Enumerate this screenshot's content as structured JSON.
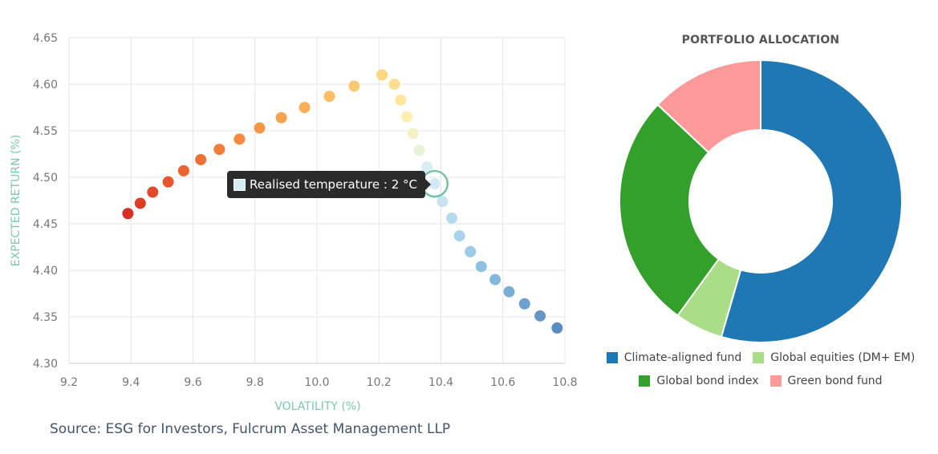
{
  "chart_data": [
    {
      "type": "scatter",
      "xlabel": "VOLATILITY (%)",
      "ylabel": "EXPECTED RETURN (%)",
      "xlim": [
        9.2,
        10.8
      ],
      "ylim": [
        4.3,
        4.65
      ],
      "x_ticks": [
        "9.2",
        "9.4",
        "9.6",
        "9.8",
        "10.0",
        "10.2",
        "10.4",
        "10.6",
        "10.8"
      ],
      "y_ticks": [
        "4.30",
        "4.35",
        "4.40",
        "4.45",
        "4.50",
        "4.55",
        "4.60",
        "4.65"
      ],
      "grid": true,
      "points": [
        {
          "x": 9.39,
          "y": 4.461,
          "color": "#d73027"
        },
        {
          "x": 9.43,
          "y": 4.472,
          "color": "#dc3d29"
        },
        {
          "x": 9.47,
          "y": 4.484,
          "color": "#e1492b"
        },
        {
          "x": 9.52,
          "y": 4.495,
          "color": "#e6552e"
        },
        {
          "x": 9.57,
          "y": 4.507,
          "color": "#eb6331"
        },
        {
          "x": 9.625,
          "y": 4.519,
          "color": "#ef7035"
        },
        {
          "x": 9.685,
          "y": 4.53,
          "color": "#f27d3a"
        },
        {
          "x": 9.75,
          "y": 4.541,
          "color": "#f4893f"
        },
        {
          "x": 9.815,
          "y": 4.553,
          "color": "#f69646"
        },
        {
          "x": 9.885,
          "y": 4.564,
          "color": "#f8a24f"
        },
        {
          "x": 9.96,
          "y": 4.575,
          "color": "#fab05a"
        },
        {
          "x": 10.04,
          "y": 4.587,
          "color": "#fbbd65"
        },
        {
          "x": 10.12,
          "y": 4.598,
          "color": "#fcc972"
        },
        {
          "x": 10.21,
          "y": 4.61,
          "color": "#fdd780"
        },
        {
          "x": 10.25,
          "y": 4.6,
          "color": "#fedf8f"
        },
        {
          "x": 10.27,
          "y": 4.583,
          "color": "#fee79d"
        },
        {
          "x": 10.29,
          "y": 4.565,
          "color": "#feefae"
        },
        {
          "x": 10.31,
          "y": 4.547,
          "color": "#f4f2c4"
        },
        {
          "x": 10.33,
          "y": 4.529,
          "color": "#e6f3d6"
        },
        {
          "x": 10.355,
          "y": 4.511,
          "color": "#d9eef2"
        },
        {
          "x": 10.38,
          "y": 4.493,
          "color": "#d0e9f4"
        },
        {
          "x": 10.405,
          "y": 4.474,
          "color": "#c5e3f1"
        },
        {
          "x": 10.435,
          "y": 4.456,
          "color": "#b6dbee"
        },
        {
          "x": 10.46,
          "y": 4.437,
          "color": "#a9d3ea"
        },
        {
          "x": 10.495,
          "y": 4.42,
          "color": "#9ccbe6"
        },
        {
          "x": 10.53,
          "y": 4.404,
          "color": "#8fc2e1"
        },
        {
          "x": 10.575,
          "y": 4.39,
          "color": "#83b8db"
        },
        {
          "x": 10.62,
          "y": 4.377,
          "color": "#78add4"
        },
        {
          "x": 10.67,
          "y": 4.364,
          "color": "#6ea2cd"
        },
        {
          "x": 10.72,
          "y": 4.351,
          "color": "#6497c6"
        },
        {
          "x": 10.775,
          "y": 4.338,
          "color": "#5b8cbf"
        }
      ],
      "highlight_index": 20,
      "highlight_ring_color": "#78c2a4",
      "tooltip": {
        "text": "Realised temperature : 2 °C",
        "swatch_color": "#d6ecf3"
      }
    },
    {
      "type": "pie",
      "title": "PORTFOLIO ALLOCATION",
      "donut": true,
      "slices": [
        {
          "label": "Climate-aligned fund",
          "value": 54.5,
          "color": "#1f77b4"
        },
        {
          "label": "Global equities (DM+ EM)",
          "value": 5.5,
          "color": "#aadd88"
        },
        {
          "label": "Global bond index",
          "value": 27.0,
          "color": "#33a02c"
        },
        {
          "label": "Green bond fund",
          "value": 13.0,
          "color": "#fb9a99"
        }
      ]
    }
  ],
  "source_note": "Source: ESG for Investors, Fulcrum Asset Management LLP"
}
